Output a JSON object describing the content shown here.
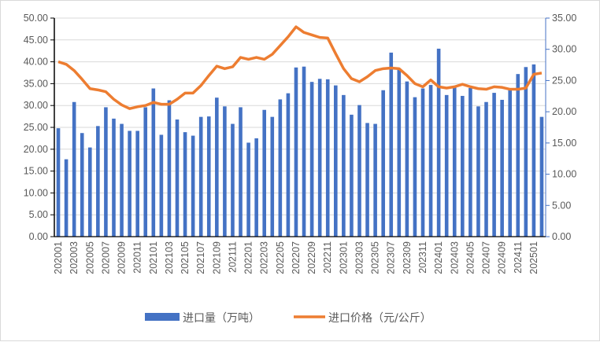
{
  "chart_data": {
    "type": "bar+line",
    "left_axis": {
      "ylim": [
        0,
        50
      ],
      "ticks": [
        "0.00",
        "5.00",
        "10.00",
        "15.00",
        "20.00",
        "25.00",
        "30.00",
        "35.00",
        "40.00",
        "45.00",
        "50.00"
      ]
    },
    "right_axis": {
      "ylim": [
        0,
        35
      ],
      "ticks": [
        "0.00",
        "5.00",
        "10.00",
        "15.00",
        "20.00",
        "25.00",
        "30.00",
        "35.00"
      ]
    },
    "x": [
      "202001",
      "202002",
      "202003",
      "202004",
      "202005",
      "202006",
      "202007",
      "202008",
      "202009",
      "202010",
      "202011",
      "202012",
      "202101",
      "202102",
      "202103",
      "202104",
      "202105",
      "202106",
      "202107",
      "202108",
      "202109",
      "202110",
      "202111",
      "202112",
      "202201",
      "202202",
      "202203",
      "202204",
      "202205",
      "202206",
      "202207",
      "202208",
      "202209",
      "202210",
      "202211",
      "202212",
      "202301",
      "202302",
      "202303",
      "202304",
      "202305",
      "202306",
      "202307",
      "202308",
      "202309",
      "202310",
      "202311",
      "202312",
      "202401",
      "202402",
      "202403",
      "202404",
      "202405",
      "202406",
      "202407",
      "202408",
      "202409",
      "202410",
      "202411",
      "202412",
      "202501",
      "202502"
    ],
    "series": [
      {
        "name": "进口量（万吨）",
        "type": "bar",
        "axis": "left",
        "color": "#4472C4",
        "values": [
          24.8,
          17.7,
          30.8,
          23.7,
          20.4,
          25.3,
          29.6,
          27.0,
          25.8,
          24.2,
          24.2,
          29.6,
          33.9,
          23.3,
          31.2,
          26.8,
          23.9,
          23.1,
          27.4,
          27.5,
          31.8,
          29.8,
          25.8,
          29.6,
          21.5,
          22.5,
          29.0,
          27.4,
          31.4,
          32.8,
          38.7,
          38.9,
          35.4,
          36.1,
          36.0,
          34.6,
          32.4,
          27.9,
          30.1,
          26.0,
          25.8,
          33.5,
          42.1,
          38.2,
          35.5,
          31.9,
          33.9,
          34.7,
          43.0,
          32.4,
          34.3,
          32.2,
          34.0,
          29.8,
          30.8,
          32.9,
          31.3,
          33.5,
          37.2,
          38.8,
          39.4,
          27.4
        ]
      },
      {
        "name": "进口价格（元/公斤）",
        "type": "line",
        "axis": "right",
        "color": "#ED7D31",
        "values": [
          28.0,
          27.6,
          26.6,
          25.2,
          23.7,
          23.5,
          23.2,
          22.0,
          21.1,
          20.5,
          20.8,
          21.0,
          21.5,
          21.2,
          21.2,
          22.0,
          23.0,
          23.0,
          24.2,
          25.8,
          27.3,
          26.9,
          27.2,
          28.7,
          28.4,
          28.7,
          28.4,
          29.2,
          30.6,
          32.0,
          33.6,
          32.7,
          32.3,
          31.9,
          31.8,
          29.3,
          26.9,
          25.3,
          24.8,
          25.6,
          26.6,
          26.9,
          27.0,
          26.9,
          25.8,
          24.5,
          24.0,
          25.1,
          24.0,
          23.8,
          24.0,
          24.4,
          24.0,
          23.7,
          23.6,
          24.0,
          23.9,
          23.6,
          23.6,
          23.8,
          26.0,
          26.2
        ]
      }
    ],
    "legend_position": "bottom",
    "grid": true
  }
}
